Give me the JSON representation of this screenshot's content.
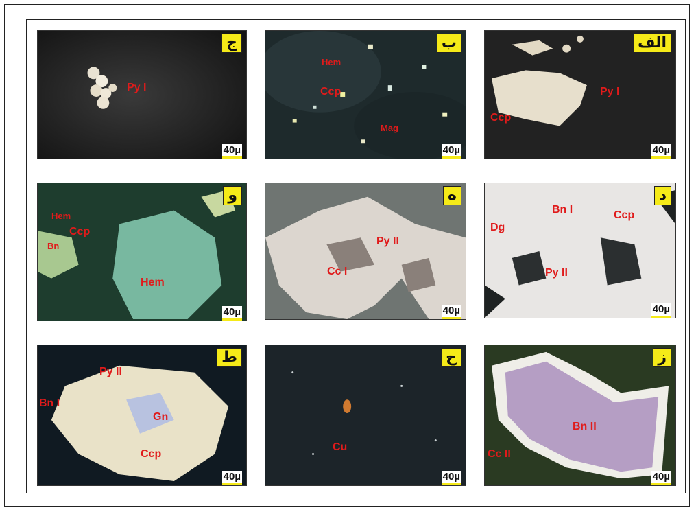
{
  "panels": [
    {
      "letter": "الف",
      "scale": "40µ",
      "labels": [
        "Py I",
        "Ccp"
      ]
    },
    {
      "letter": "ب",
      "scale": "40µ",
      "labels": [
        "Hem",
        "Ccp",
        "Mag"
      ]
    },
    {
      "letter": "ج",
      "scale": "40µ",
      "labels": [
        "Py I"
      ]
    },
    {
      "letter": "د",
      "scale": "40µ",
      "labels": [
        "Bn I",
        "Ccp",
        "Dg",
        "Py II"
      ]
    },
    {
      "letter": "ه",
      "scale": "40µ",
      "labels": [
        "Py II",
        "Cc I"
      ]
    },
    {
      "letter": "و",
      "scale": "40µ",
      "labels": [
        "Hem",
        "Ccp",
        "Bn",
        "Hem"
      ]
    },
    {
      "letter": "ز",
      "scale": "40µ",
      "labels": [
        "Bn II",
        "Cc II"
      ]
    },
    {
      "letter": "ح",
      "scale": "40µ",
      "labels": [
        "Cu"
      ]
    },
    {
      "letter": "ط",
      "scale": "40µ",
      "labels": [
        "Py II",
        "Bn I",
        "Gn",
        "Ccp"
      ]
    }
  ],
  "colors": {
    "label_red": "#e01b1b",
    "tag_yellow": "#f5ea18"
  }
}
